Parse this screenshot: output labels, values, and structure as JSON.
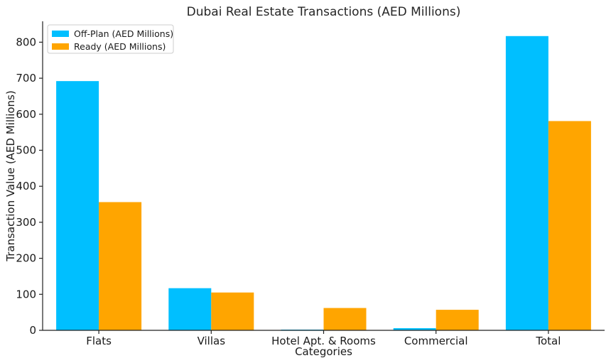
{
  "chart_data": {
    "type": "bar",
    "title": "Dubai Real Estate Transactions (AED Millions)",
    "xlabel": "Categories",
    "ylabel": "Transaction Value (AED Millions)",
    "categories": [
      "Flats",
      "Villas",
      "Hotel Apt. & Rooms",
      "Commercial",
      "Total"
    ],
    "series": [
      {
        "name": "Off-Plan (AED Millions)",
        "color": "#00bfff",
        "values": [
          692,
          117,
          2,
          6,
          817
        ]
      },
      {
        "name": "Ready (AED Millions)",
        "color": "#ffa500",
        "values": [
          356,
          105,
          62,
          57,
          581
        ]
      }
    ],
    "ylim": [
      0,
      858
    ],
    "yticks": [
      0,
      100,
      200,
      300,
      400,
      500,
      600,
      700,
      800
    ],
    "grid": false,
    "legend_position": "top-left"
  }
}
